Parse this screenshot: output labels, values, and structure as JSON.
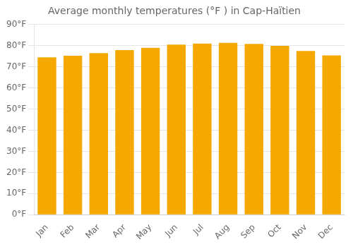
{
  "chart_data": {
    "type": "bar",
    "title": "Average monthly temperatures (°F ) in Cap-Haïtien",
    "categories": [
      "Jan",
      "Feb",
      "Mar",
      "Apr",
      "May",
      "Jun",
      "Jul",
      "Aug",
      "Sep",
      "Oct",
      "Nov",
      "Dec"
    ],
    "values": [
      74.5,
      75.2,
      76.5,
      77.9,
      79.0,
      80.5,
      81.0,
      81.3,
      80.8,
      79.9,
      77.5,
      75.4
    ],
    "color": "#F5A800",
    "ylim": [
      0,
      90
    ],
    "yticks": [
      {
        "value": 0,
        "label": "0°F"
      },
      {
        "value": 10,
        "label": "10°F"
      },
      {
        "value": 20,
        "label": "20°F"
      },
      {
        "value": 30,
        "label": "30°F"
      },
      {
        "value": 40,
        "label": "40°F"
      },
      {
        "value": 50,
        "label": "50°F"
      },
      {
        "value": 60,
        "label": "60°F"
      },
      {
        "value": 70,
        "label": "70°F"
      },
      {
        "value": 80,
        "label": "80°F"
      },
      {
        "value": 90,
        "label": "90°F"
      }
    ],
    "grid": true
  }
}
